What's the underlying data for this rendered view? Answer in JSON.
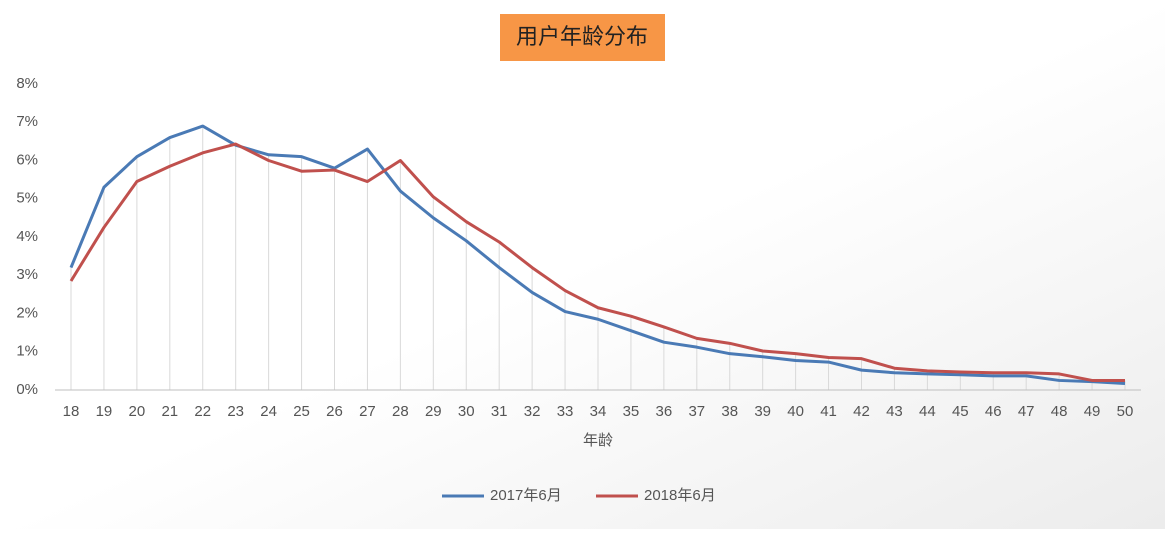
{
  "chart_data": {
    "type": "line",
    "title": "用户年龄分布",
    "x_label": "年龄",
    "categories": [
      "18",
      "19",
      "20",
      "21",
      "22",
      "23",
      "24",
      "25",
      "26",
      "27",
      "28",
      "29",
      "30",
      "31",
      "32",
      "33",
      "34",
      "35",
      "36",
      "37",
      "38",
      "39",
      "40",
      "41",
      "42",
      "43",
      "44",
      "45",
      "46",
      "47",
      "48",
      "49",
      "50"
    ],
    "series": [
      {
        "name": "2017年6月",
        "color": "#4a7ab5",
        "values": [
          3.2,
          5.3,
          6.1,
          6.6,
          6.9,
          6.4,
          6.15,
          6.1,
          5.8,
          6.3,
          5.2,
          4.5,
          3.9,
          3.2,
          2.55,
          2.05,
          1.85,
          1.55,
          1.25,
          1.12,
          0.95,
          0.87,
          0.77,
          0.73,
          0.52,
          0.45,
          0.42,
          0.4,
          0.37,
          0.37,
          0.25,
          0.22,
          0.17
        ]
      },
      {
        "name": "2018年6月",
        "color": "#c0504d",
        "values": [
          2.85,
          4.25,
          5.45,
          5.85,
          6.2,
          6.43,
          6.0,
          5.72,
          5.75,
          5.45,
          6.0,
          5.05,
          4.4,
          3.87,
          3.2,
          2.6,
          2.15,
          1.93,
          1.65,
          1.35,
          1.22,
          1.02,
          0.95,
          0.85,
          0.82,
          0.57,
          0.5,
          0.47,
          0.45,
          0.45,
          0.42,
          0.25,
          0.25
        ]
      }
    ],
    "ylim": [
      0,
      8
    ],
    "yticks": [
      {
        "value": 0,
        "label": "0%"
      },
      {
        "value": 1,
        "label": "1%"
      },
      {
        "value": 2,
        "label": "2%"
      },
      {
        "value": 3,
        "label": "3%"
      },
      {
        "value": 4,
        "label": "4%"
      },
      {
        "value": 5,
        "label": "5%"
      },
      {
        "value": 6,
        "label": "6%"
      },
      {
        "value": 7,
        "label": "7%"
      },
      {
        "value": 8,
        "label": "8%"
      }
    ],
    "drop_lines": true,
    "legend": "bottom"
  }
}
